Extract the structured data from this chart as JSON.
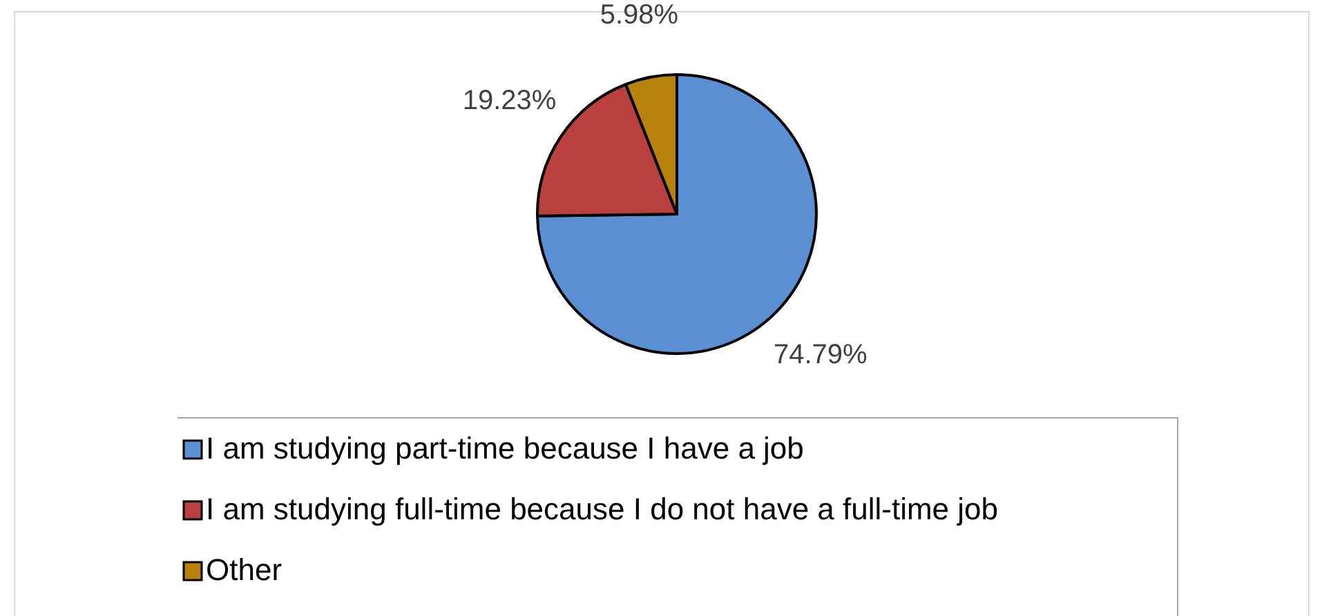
{
  "chart_data": {
    "type": "pie",
    "categories": [
      "I am studying part-time because I have a job",
      "I am studying full-time because I do not have a full-time job",
      "Other"
    ],
    "values": [
      74.79,
      19.23,
      5.98
    ],
    "colors": [
      "#5b8fd4",
      "#b9403e",
      "#b8830c"
    ],
    "value_labels": [
      "74.79%",
      "19.23%",
      "5.98%"
    ],
    "legend": "bottom"
  }
}
